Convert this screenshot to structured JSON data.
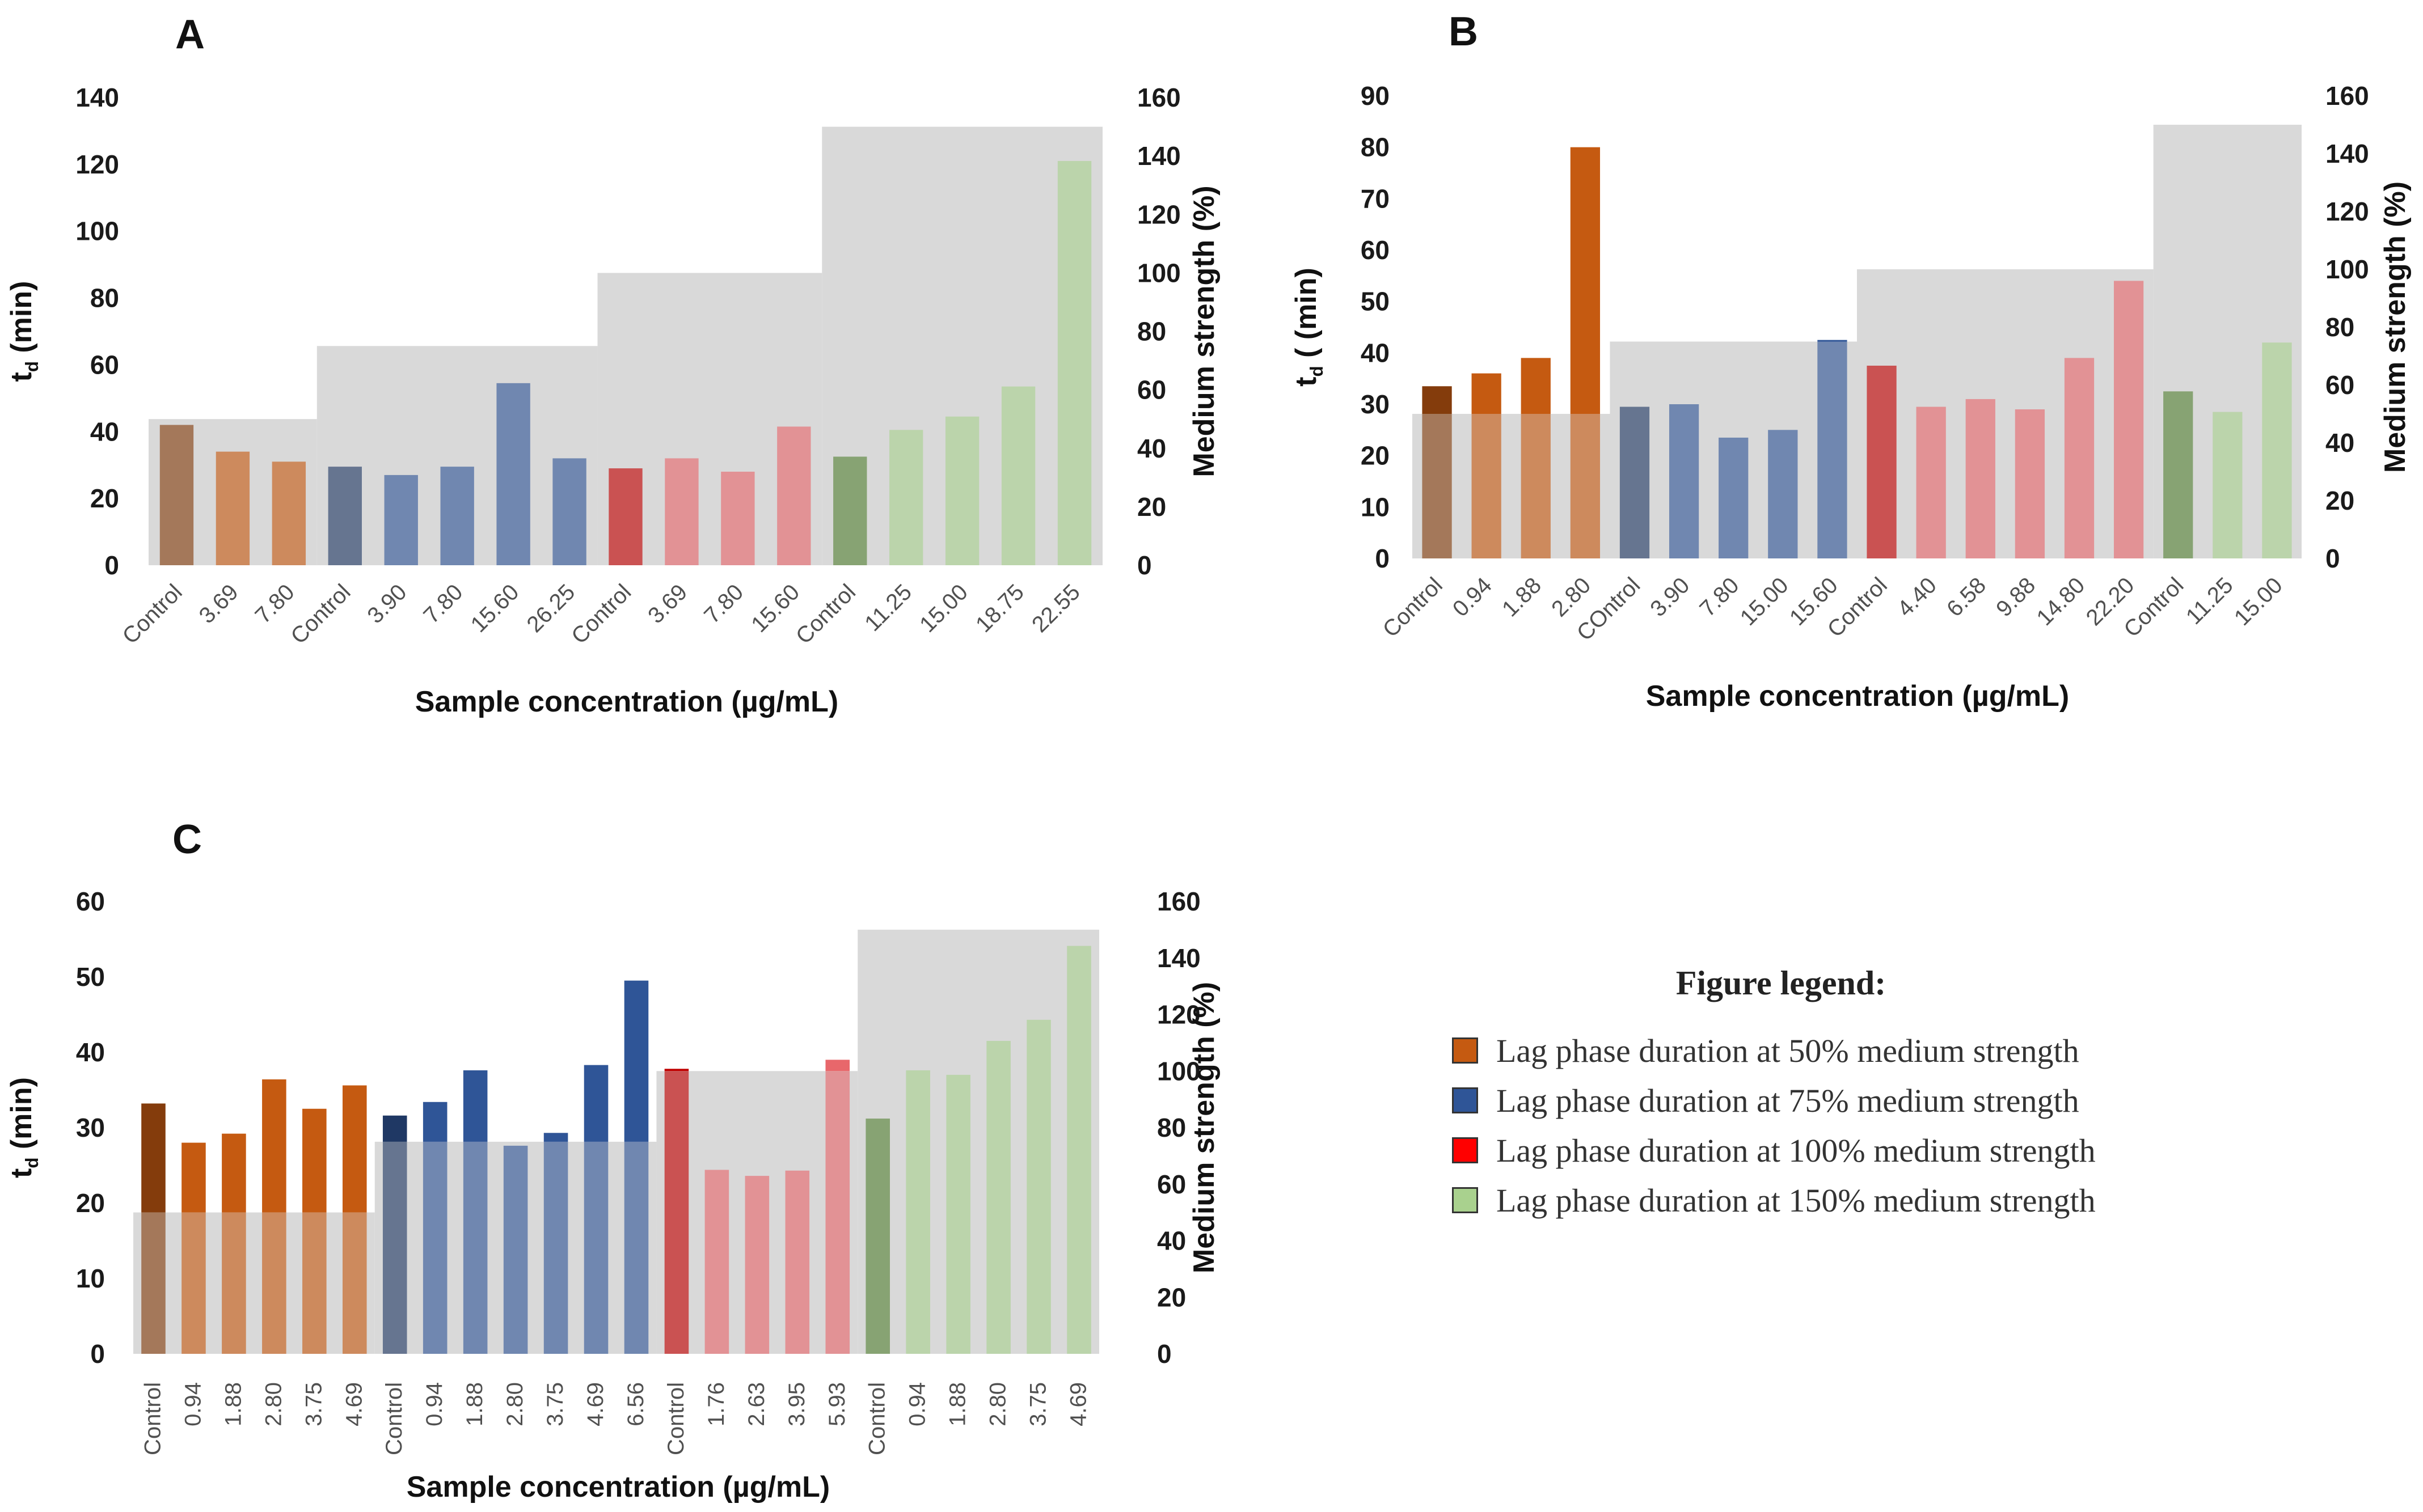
{
  "chart_data": [
    {
      "panel": "A",
      "type": "bar",
      "xlabel": "Sample concentration (µg/mL)",
      "ylabel": "t_d (min)",
      "ylabel_right": "Medium strength (%)",
      "ylim": [
        0,
        140
      ],
      "yticks": [
        0,
        20,
        40,
        60,
        80,
        100,
        120,
        140
      ],
      "ylim_right": [
        0,
        160
      ],
      "yticks_right": [
        0,
        20,
        40,
        60,
        80,
        100,
        120,
        140,
        160
      ],
      "categories": [
        "Control",
        "3.69",
        "7.80",
        "Control",
        "3.90",
        "7.80",
        "15.60",
        "26.25",
        "Control",
        "3.69",
        "7.80",
        "15.60",
        "Control",
        "11.25",
        "15.00",
        "18.75",
        "22.55"
      ],
      "values": [
        42,
        34,
        31,
        29.5,
        27,
        29.5,
        54.5,
        32,
        29,
        32,
        28,
        41.5,
        32.5,
        40.5,
        44.5,
        53.5,
        121
      ],
      "groups": [
        "50",
        "50",
        "50",
        "75",
        "75",
        "75",
        "75",
        "75",
        "100",
        "100",
        "100",
        "100",
        "150",
        "150",
        "150",
        "150",
        "150"
      ],
      "shade_as_control": [
        true,
        false,
        false,
        true,
        false,
        false,
        false,
        false,
        true,
        false,
        false,
        false,
        true,
        false,
        false,
        false,
        false
      ],
      "medium_strength": [
        {
          "start": 0,
          "end": 2,
          "value": 50
        },
        {
          "start": 3,
          "end": 7,
          "value": 75
        },
        {
          "start": 8,
          "end": 11,
          "value": 100
        },
        {
          "start": 12,
          "end": 16,
          "value": 150
        }
      ]
    },
    {
      "panel": "B",
      "type": "bar",
      "xlabel": "Sample concentration (µg/mL)",
      "ylabel": "t_d ( (min)",
      "ylabel_right": "Medium strength (%)",
      "ylim": [
        0,
        90
      ],
      "yticks": [
        0,
        10,
        20,
        30,
        40,
        50,
        60,
        70,
        80,
        90
      ],
      "ylim_right": [
        0,
        160
      ],
      "yticks_right": [
        0,
        20,
        40,
        60,
        80,
        100,
        120,
        140,
        160
      ],
      "categories": [
        "Control",
        "0.94",
        "1.88",
        "2.80",
        "COntrol",
        "3.90",
        "7.80",
        "15.00",
        "15.60",
        "Control",
        "4.40",
        "6.58",
        "9.88",
        "14.80",
        "22.20",
        "Control",
        "11.25",
        "15.00"
      ],
      "values": [
        33.5,
        36,
        39,
        80,
        29.5,
        30,
        23.5,
        25,
        42.5,
        37.5,
        29.5,
        31,
        29,
        39,
        54,
        32.5,
        28.5,
        42
      ],
      "groups": [
        "50",
        "50",
        "50",
        "50",
        "75",
        "75",
        "75",
        "75",
        "75",
        "100",
        "100",
        "100",
        "100",
        "100",
        "100",
        "150",
        "150",
        "150"
      ],
      "shade_as_control": [
        true,
        false,
        false,
        false,
        true,
        false,
        false,
        false,
        false,
        true,
        false,
        false,
        false,
        false,
        false,
        true,
        false,
        false
      ],
      "medium_strength": [
        {
          "start": 0,
          "end": 3,
          "value": 50
        },
        {
          "start": 4,
          "end": 8,
          "value": 75
        },
        {
          "start": 9,
          "end": 14,
          "value": 100
        },
        {
          "start": 15,
          "end": 17,
          "value": 150
        }
      ]
    },
    {
      "panel": "C",
      "type": "bar",
      "xlabel": "Sample concentration (µg/mL)",
      "ylabel": "t_d (min)",
      "ylabel_right": "Medium strength (%)",
      "ylim": [
        0,
        60
      ],
      "yticks": [
        0,
        10,
        20,
        30,
        40,
        50,
        60
      ],
      "ylim_right": [
        0,
        160
      ],
      "yticks_right": [
        0,
        20,
        40,
        60,
        80,
        100,
        120,
        140,
        160
      ],
      "categories": [
        "Control",
        "0.94",
        "1.88",
        "2.80",
        "3.75",
        "4.69",
        "Control",
        "0.94",
        "1.88",
        "2.80",
        "3.75",
        "4.69",
        "6.56",
        "Control",
        "1.76",
        "2.63",
        "3.95",
        "5.93",
        "Control",
        "0.94",
        "1.88",
        "2.80",
        "3.75",
        "4.69"
      ],
      "values": [
        33.2,
        28,
        29.2,
        36.4,
        32.5,
        35.6,
        31.6,
        33.4,
        37.6,
        27.6,
        29.3,
        38.3,
        49.5,
        37.8,
        24.4,
        23.6,
        24.3,
        39,
        31.2,
        37.6,
        37,
        41.5,
        44.3,
        54.1
      ],
      "groups": [
        "50",
        "50",
        "50",
        "50",
        "50",
        "50",
        "75",
        "75",
        "75",
        "75",
        "75",
        "75",
        "75",
        "100",
        "100",
        "100",
        "100",
        "100",
        "150",
        "150",
        "150",
        "150",
        "150",
        "150"
      ],
      "shade_as_control": [
        true,
        false,
        false,
        false,
        false,
        false,
        true,
        false,
        false,
        false,
        false,
        false,
        false,
        true,
        false,
        false,
        false,
        false,
        true,
        false,
        false,
        false,
        false,
        false
      ],
      "medium_strength": [
        {
          "start": 0,
          "end": 5,
          "value": 50
        },
        {
          "start": 6,
          "end": 12,
          "value": 75
        },
        {
          "start": 13,
          "end": 17,
          "value": 100
        },
        {
          "start": 18,
          "end": 23,
          "value": 150
        }
      ]
    }
  ],
  "colors": {
    "group_50": "#c55a11",
    "group_75": "#2f5597",
    "group_100": "#e8676b",
    "group_150": "#a9d18e",
    "control_50": "#843c0c",
    "control_75": "#1f3864",
    "control_100": "#c00000",
    "control_150": "#548235",
    "background": "#d9d9d9",
    "legend_100": "#ff0000"
  },
  "legend": {
    "title": "Figure legend:",
    "items": [
      {
        "label": "Lag phase duration at 50% medium strength",
        "color_key": "group_50"
      },
      {
        "label": "Lag phase duration at 75% medium strength",
        "color_key": "group_75"
      },
      {
        "label": "Lag phase duration at 100% medium strength",
        "color_key": "legend_100"
      },
      {
        "label": "Lag phase duration at 150% medium strength",
        "color_key": "group_150"
      }
    ]
  }
}
